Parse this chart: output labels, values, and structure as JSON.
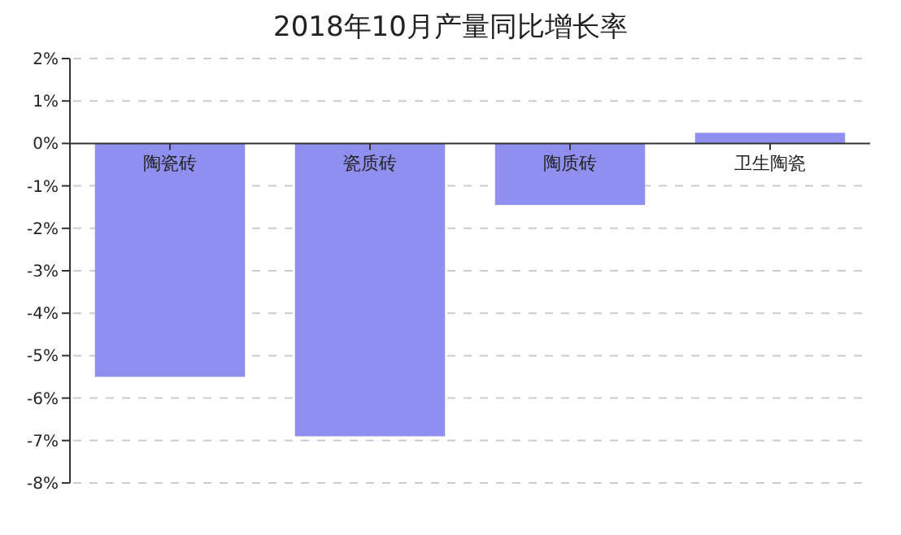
{
  "chart_data": {
    "type": "bar",
    "title": "2018年10月产量同比增长率",
    "categories": [
      "陶瓷砖",
      "瓷质砖",
      "陶质砖",
      "卫生陶瓷"
    ],
    "values": [
      -5.5,
      -6.9,
      -1.45,
      0.25
    ],
    "color": "#8f8fef",
    "ylim": [
      -8,
      2
    ],
    "yticks": [
      {
        "value": -8,
        "label": "-8%"
      },
      {
        "value": -7,
        "label": "-7%"
      },
      {
        "value": -6,
        "label": "-6%"
      },
      {
        "value": -5,
        "label": "-5%"
      },
      {
        "value": -4,
        "label": "-4%"
      },
      {
        "value": -3,
        "label": "-3%"
      },
      {
        "value": -2,
        "label": "-2%"
      },
      {
        "value": -1,
        "label": "-1%"
      },
      {
        "value": 0,
        "label": "0%"
      },
      {
        "value": 1,
        "label": "1%"
      },
      {
        "value": 2,
        "label": "2%"
      }
    ],
    "grid": "y"
  }
}
